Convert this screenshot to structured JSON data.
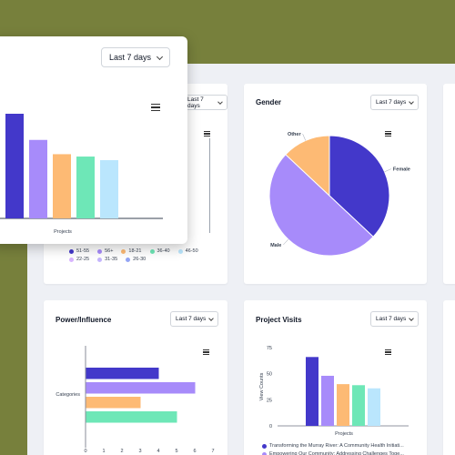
{
  "range_label": "Last 7 days",
  "gender_card": {
    "title": "Gender",
    "chart_data": {
      "type": "pie",
      "categories": [
        "Female",
        "Male",
        "Other"
      ],
      "values": [
        37,
        50,
        13
      ],
      "colors": [
        "#4338ca",
        "#a78bfa",
        "#fdba74"
      ]
    }
  },
  "age_card": {
    "legend": [
      {
        "label": "51-55",
        "color": "#4338ca"
      },
      {
        "label": "56+",
        "color": "#a78bfa"
      },
      {
        "label": "18-21",
        "color": "#fdba74"
      },
      {
        "label": "36-40",
        "color": "#6ee7b7"
      },
      {
        "label": "46-50",
        "color": "#bae6fd"
      },
      {
        "label": "22-25",
        "color": "#d8b4fe"
      },
      {
        "label": "31-35",
        "color": "#c4b5fd"
      },
      {
        "label": "26-30",
        "color": "#93a5f5"
      }
    ]
  },
  "power_card": {
    "title": "Power/Influence",
    "chart_data": {
      "type": "bar",
      "orientation": "horizontal",
      "ylabel": "Categories",
      "values": [
        4,
        6,
        3,
        5
      ],
      "colors": [
        "#4338ca",
        "#a78bfa",
        "#fdba74",
        "#6ee7b7"
      ],
      "xlim": [
        0,
        7
      ],
      "xticks": [
        "0",
        "1",
        "2",
        "3",
        "4",
        "5",
        "6",
        "7"
      ]
    }
  },
  "visits_card": {
    "title": "Project Visits",
    "chart_data": {
      "type": "bar",
      "xlabel": "Projects",
      "ylabel": "View Counts",
      "values": [
        66,
        48,
        40,
        39,
        36
      ],
      "colors": [
        "#4338ca",
        "#a78bfa",
        "#fdba74",
        "#6ee7b7",
        "#bae6fd"
      ],
      "ylim": [
        0,
        75
      ],
      "yticks": [
        "75",
        "50",
        "25",
        "0"
      ]
    },
    "legend": [
      {
        "label": "Transforming the Murray River: A Community Health Initiati...",
        "color": "#4338ca"
      },
      {
        "label": "Empowering Our Community: Addressing Challenges Toge...",
        "color": "#a78bfa"
      }
    ]
  },
  "popup_card": {
    "chart_data": {
      "type": "bar",
      "xlabel": "Projects",
      "values": [
        88,
        66,
        54,
        52,
        49
      ],
      "colors": [
        "#4338ca",
        "#a78bfa",
        "#fdba74",
        "#6ee7b7",
        "#bae6fd"
      ]
    }
  }
}
